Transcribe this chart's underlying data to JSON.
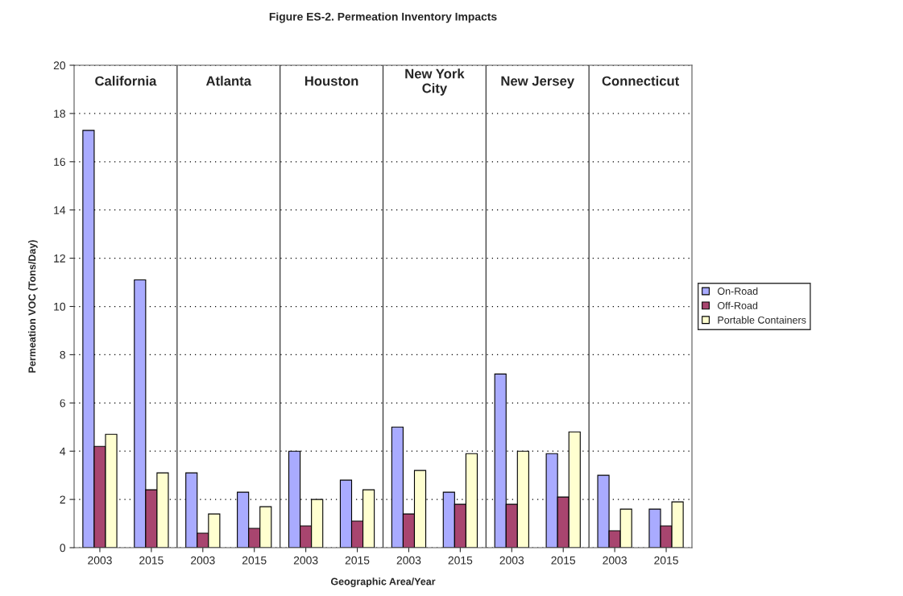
{
  "chart_data": {
    "type": "bar",
    "title": "Figure ES-2. Permeation Inventory Impacts",
    "xlabel": "Geographic Area/Year",
    "ylabel": "Permeation VOC (Tons/Day)",
    "categories": [
      "2003",
      "2015",
      "2003",
      "2015",
      "2003",
      "2015",
      "2003",
      "2015",
      "2003",
      "2015",
      "2003",
      "2015"
    ],
    "annotations": [
      "California",
      "Atlanta",
      "Houston",
      "New York\nCity",
      "New Jersey",
      "Connecticut"
    ],
    "series": [
      {
        "name": "On-Road",
        "color": "#a9abff",
        "values": [
          17.3,
          11.1,
          3.1,
          2.3,
          4.0,
          2.8,
          5.0,
          2.3,
          7.2,
          3.9,
          3.0,
          1.6
        ]
      },
      {
        "name": "Off-Road",
        "color": "#a8456f",
        "values": [
          4.2,
          2.4,
          0.6,
          0.8,
          0.9,
          1.1,
          1.4,
          1.8,
          1.8,
          2.1,
          0.7,
          0.9
        ]
      },
      {
        "name": "Portable Containers",
        "color": "#ffffd0",
        "values": [
          4.7,
          3.1,
          1.4,
          1.7,
          2.0,
          2.4,
          3.2,
          3.9,
          4.0,
          4.8,
          1.6,
          1.9
        ]
      }
    ],
    "ylim": [
      0,
      20
    ],
    "yticks": [
      0,
      2,
      4,
      6,
      8,
      10,
      12,
      14,
      16,
      18,
      20
    ],
    "grid": "y",
    "legend": "right"
  }
}
